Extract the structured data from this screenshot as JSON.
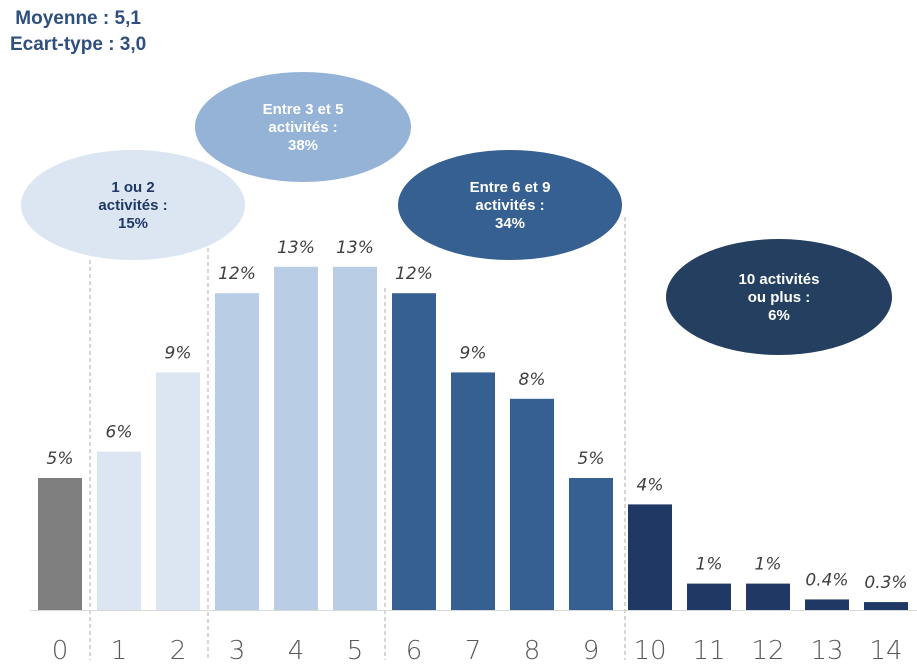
{
  "summary": {
    "mean": "Moyenne : 5,1",
    "std": "Ecart-type : 3,0"
  },
  "chart_data": {
    "type": "bar",
    "categories": [
      "0",
      "1",
      "2",
      "3",
      "4",
      "5",
      "6",
      "7",
      "8",
      "9",
      "10",
      "11",
      "12",
      "13",
      "14"
    ],
    "values": [
      5,
      6,
      9,
      12,
      13,
      13,
      12,
      9,
      8,
      5,
      4,
      1,
      1,
      0.4,
      0.3
    ],
    "data_labels": [
      "5%",
      "6%",
      "9%",
      "12%",
      "13%",
      "13%",
      "12%",
      "9%",
      "8%",
      "5%",
      "4%",
      "1%",
      "1%",
      "0.4%",
      "0.3%"
    ],
    "groups": [
      {
        "label_lines": [
          "1 ou 2",
          "activités :",
          "15%"
        ],
        "color": "#DCE6F2",
        "text_color": "#1F3864",
        "categories": [
          "1",
          "2"
        ]
      },
      {
        "label_lines": [
          "Entre 3 et 5",
          "activités :",
          "38%"
        ],
        "color": "#95B3D7",
        "text_color": "#ffffff",
        "categories": [
          "3",
          "4",
          "5"
        ]
      },
      {
        "label_lines": [
          "Entre 6 et 9",
          "activités :",
          "34%"
        ],
        "color": "#376092",
        "text_color": "#ffffff",
        "categories": [
          "6",
          "7",
          "8",
          "9"
        ]
      },
      {
        "label_lines": [
          "10 activités",
          "ou plus :",
          "6%"
        ],
        "color": "#243F60",
        "text_color": "#ffffff",
        "categories": [
          "10",
          "11",
          "12",
          "13",
          "14"
        ]
      }
    ],
    "bar_colors": [
      "#7F7F7F",
      "#DCE6F2",
      "#DCE6F2",
      "#B9CDE5",
      "#B9CDE5",
      "#B9CDE5",
      "#376092",
      "#376092",
      "#376092",
      "#376092",
      "#1F3864",
      "#1F3864",
      "#1F3864",
      "#1F3864",
      "#1F3864"
    ],
    "ylim": [
      0,
      15
    ],
    "xlabel": "",
    "ylabel": "",
    "grid": false,
    "legend": "none"
  }
}
